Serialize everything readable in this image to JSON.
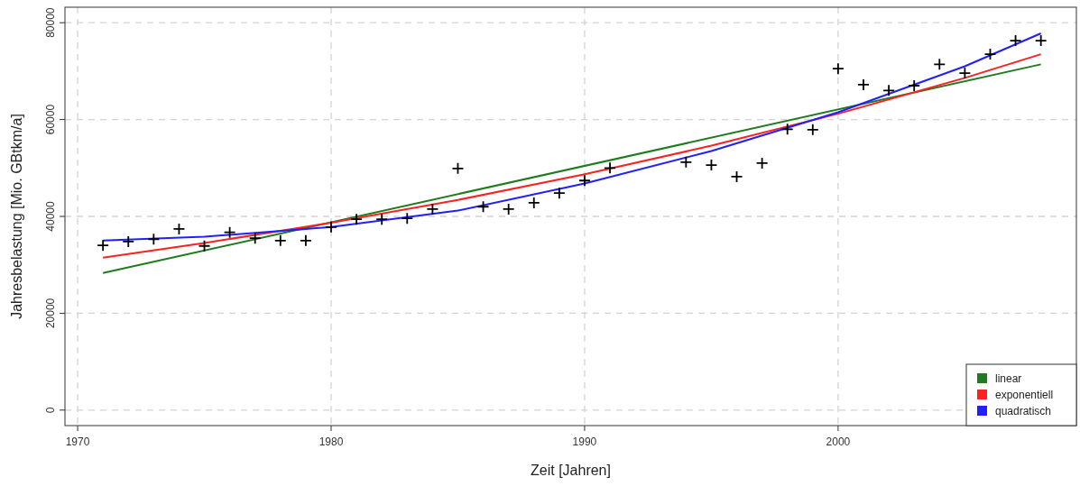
{
  "chart_data": {
    "type": "line",
    "xlabel": "Zeit [Jahren]",
    "ylabel": "Jahresbelastung [Mio. GBtkm/a]",
    "xlim": [
      1969.5,
      2009.4
    ],
    "ylim": [
      -3200,
      83200
    ],
    "xticks": [
      1970,
      1980,
      1990,
      2000
    ],
    "yticks": [
      0,
      20000,
      40000,
      60000,
      80000
    ],
    "grid": true,
    "legend": "bottom right",
    "series": [
      {
        "type": "scatter",
        "marker": "cross",
        "color": "#000000",
        "x": [
          1971,
          1972,
          1973,
          1974,
          1975,
          1976,
          1977,
          1978,
          1979,
          1980,
          1981,
          1982,
          1983,
          1984,
          1985,
          1986,
          1987,
          1988,
          1989,
          1990,
          1991,
          1994,
          1995,
          1996,
          1997,
          1998,
          1999,
          2000,
          2001,
          2002,
          2003,
          2004,
          2005,
          2006,
          2007,
          2008
        ],
        "values": [
          34000,
          34800,
          35300,
          37400,
          33900,
          36700,
          35500,
          35000,
          35000,
          37800,
          39400,
          39400,
          39600,
          41500,
          49900,
          42000,
          41500,
          42800,
          44800,
          47400,
          50000,
          51200,
          50600,
          48200,
          51000,
          58000,
          57900,
          70500,
          67200,
          66000,
          67000,
          71400,
          69600,
          73500,
          76300,
          76300
        ]
      },
      {
        "name": "linear",
        "color": "#1e7b1e",
        "x": [
          1971,
          2008
        ],
        "values": [
          28300,
          71400
        ]
      },
      {
        "name": "exponentiell",
        "color": "#ff2020",
        "x": [
          1971,
          1975,
          1980,
          1985,
          1990,
          1995,
          2000,
          2005,
          2008
        ],
        "values": [
          31500,
          34500,
          38700,
          43400,
          48700,
          54600,
          61200,
          68600,
          73500
        ]
      },
      {
        "name": "quadratisch",
        "color": "#2020ff",
        "x": [
          1971,
          1975,
          1980,
          1985,
          1990,
          1995,
          2000,
          2005,
          2008
        ],
        "values": [
          35000,
          35800,
          37800,
          41200,
          46800,
          53500,
          61500,
          71000,
          77800
        ]
      }
    ]
  }
}
